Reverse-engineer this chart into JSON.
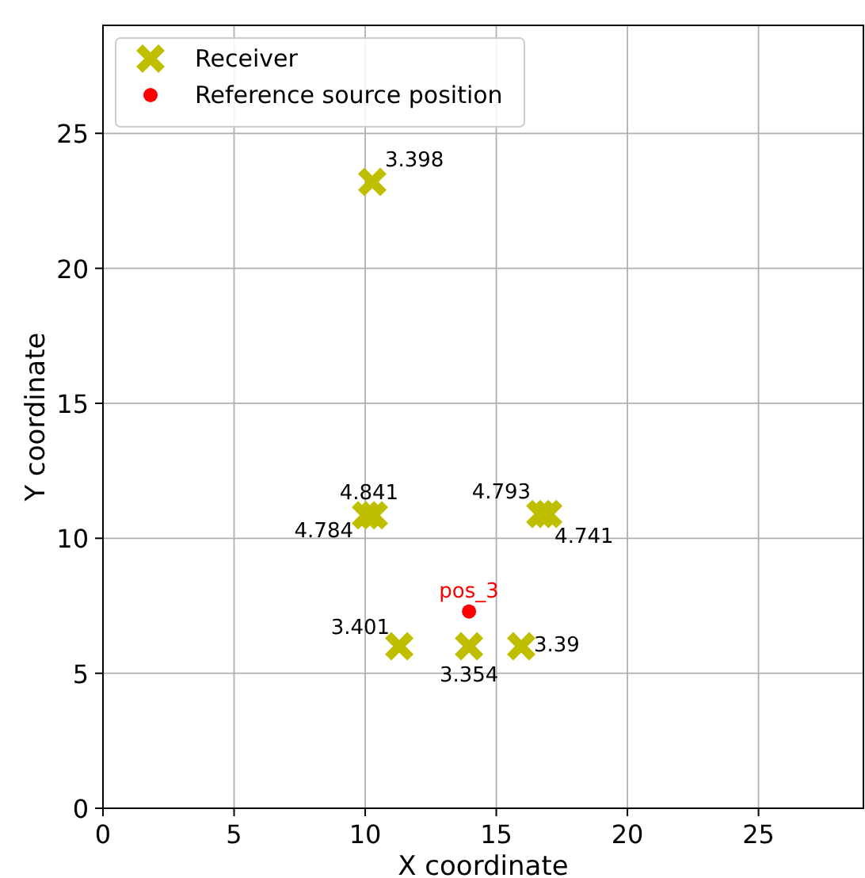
{
  "chart_data": {
    "type": "scatter",
    "xlabel": "X coordinate",
    "ylabel": "Y coordinate",
    "xlim": [
      0,
      29
    ],
    "ylim": [
      0,
      29
    ],
    "xticks": [
      0,
      5,
      10,
      15,
      20,
      25
    ],
    "yticks": [
      0,
      5,
      10,
      15,
      20,
      25
    ],
    "grid": true,
    "legend": "top left",
    "series": [
      {
        "name": "Receiver",
        "color": "#bfbf00",
        "marker": "cross",
        "x": [
          10.27,
          10.03,
          10.33,
          16.68,
          16.98,
          11.3,
          13.96,
          15.95
        ],
        "values": [
          23.2,
          10.85,
          10.85,
          10.9,
          10.9,
          6.0,
          6.0,
          6.0
        ]
      },
      {
        "name": "Reference source position",
        "color": "#ff0000",
        "marker": "circle",
        "x": [
          13.96
        ],
        "values": [
          7.29
        ]
      }
    ],
    "annotations": [
      {
        "text": "3.398",
        "x": 10.27,
        "y": 23.2
      },
      {
        "text": "4.784",
        "x": 10.03,
        "y": 10.85
      },
      {
        "text": "4.841",
        "x": 10.33,
        "y": 10.85
      },
      {
        "text": "4.793",
        "x": 16.68,
        "y": 10.9
      },
      {
        "text": "4.741",
        "x": 16.98,
        "y": 10.9
      },
      {
        "text": "3.401",
        "x": 11.3,
        "y": 6.0
      },
      {
        "text": "3.354",
        "x": 13.96,
        "y": 6.0
      },
      {
        "text": "3.39",
        "x": 15.95,
        "y": 6.0
      },
      {
        "text": "pos_3",
        "x": 13.96,
        "y": 7.29
      }
    ]
  }
}
